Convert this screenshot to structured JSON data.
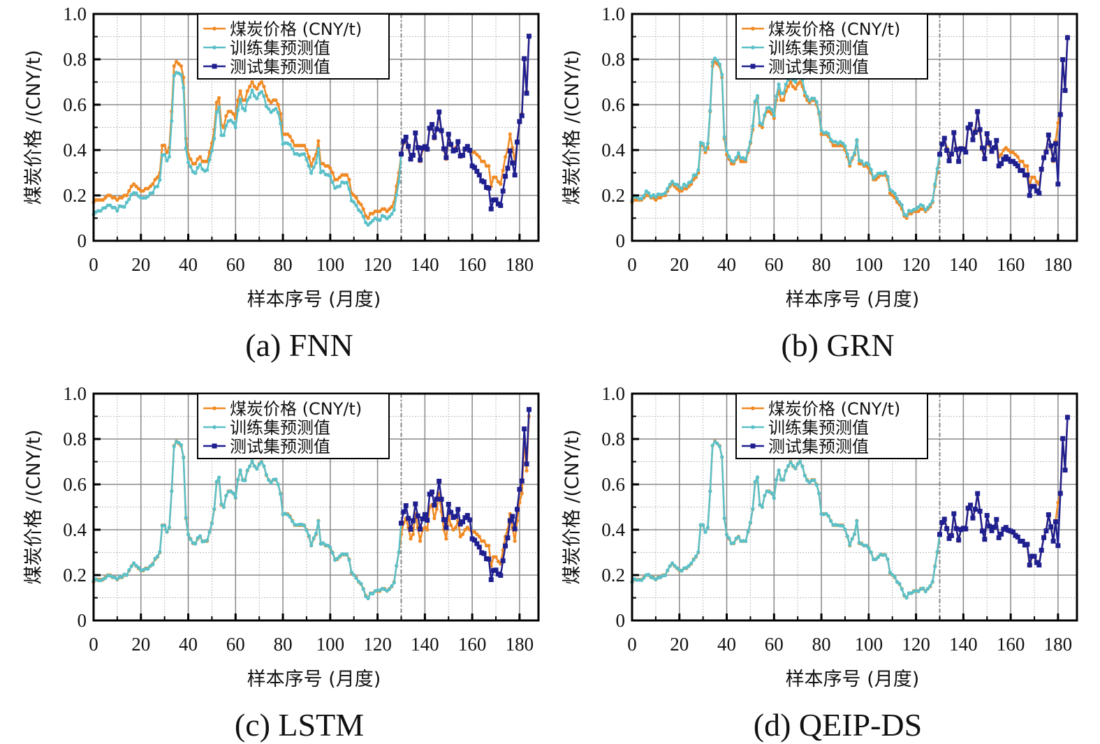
{
  "figure": {
    "x_axis_title": "样本序号 (月度)",
    "y_axis_title": "煤炭价格 /(CNY/t)",
    "legend": [
      {
        "label": "煤炭价格 (CNY/t)",
        "color": "#f08a24",
        "marker": "circle"
      },
      {
        "label": "训练集预测值",
        "color": "#5bc0c8",
        "marker": "circle"
      },
      {
        "label": "测试集预测值",
        "color": "#1f1f8f",
        "marker": "square"
      }
    ],
    "colors": {
      "actual": "#f08a24",
      "train": "#5bc0c8",
      "test": "#1f1f8f",
      "major_grid": "#888888",
      "minor_grid": "#bbbbbb",
      "split_line": "#888888"
    }
  },
  "chart_data": [
    {
      "type": "line",
      "panel": "a",
      "caption": "(a) FNN",
      "xlabel": "样本序号 (月度)",
      "ylabel": "煤炭价格 /(CNY/t)",
      "xlim": [
        0,
        188
      ],
      "ylim": [
        0,
        1.0
      ],
      "x_ticks": [
        0,
        20,
        40,
        60,
        80,
        100,
        120,
        140,
        160,
        180
      ],
      "y_ticks": [
        "0",
        "0.2",
        "0.4",
        "0.6",
        "0.8",
        "1.0"
      ],
      "y_tick_values": [
        0,
        0.2,
        0.4,
        0.6,
        0.8,
        1.0
      ],
      "grid": true,
      "legend_position": "top-center",
      "train_test_split": 130,
      "model": "FNN"
    },
    {
      "type": "line",
      "panel": "b",
      "caption": "(b) GRN",
      "xlabel": "样本序号 (月度)",
      "ylabel": "煤炭价格 /(CNY/t)",
      "xlim": [
        0,
        188
      ],
      "ylim": [
        0,
        1.0
      ],
      "x_ticks": [
        0,
        20,
        40,
        60,
        80,
        100,
        120,
        140,
        160,
        180
      ],
      "y_ticks": [
        "0",
        "0.2",
        "0.4",
        "0.6",
        "0.8",
        "1.0"
      ],
      "y_tick_values": [
        0,
        0.2,
        0.4,
        0.6,
        0.8,
        1.0
      ],
      "grid": true,
      "legend_position": "top-center",
      "train_test_split": 130,
      "model": "GRN"
    },
    {
      "type": "line",
      "panel": "c",
      "caption": "(c) LSTM",
      "xlabel": "样本序号 (月度)",
      "ylabel": "煤炭价格 /(CNY/t)",
      "xlim": [
        0,
        188
      ],
      "ylim": [
        0,
        1.0
      ],
      "x_ticks": [
        0,
        20,
        40,
        60,
        80,
        100,
        120,
        140,
        160,
        180
      ],
      "y_ticks": [
        "0",
        "0.2",
        "0.4",
        "0.6",
        "0.8",
        "1.0"
      ],
      "y_tick_values": [
        0,
        0.2,
        0.4,
        0.6,
        0.8,
        1.0
      ],
      "grid": true,
      "legend_position": "top-center",
      "train_test_split": 130,
      "model": "LSTM"
    },
    {
      "type": "line",
      "panel": "d",
      "caption": "(d) QEIP-DS",
      "xlabel": "样本序号 (月度)",
      "ylabel": "煤炭价格 /(CNY/t)",
      "xlim": [
        0,
        188
      ],
      "ylim": [
        0,
        1.0
      ],
      "x_ticks": [
        0,
        20,
        40,
        60,
        80,
        100,
        120,
        140,
        160,
        180
      ],
      "y_ticks": [
        "0",
        "0.2",
        "0.4",
        "0.6",
        "0.8",
        "1.0"
      ],
      "y_tick_values": [
        0,
        0.2,
        0.4,
        0.6,
        0.8,
        1.0
      ],
      "grid": true,
      "legend_position": "top-center",
      "train_test_split": 130,
      "model": "QEIP-DS"
    }
  ],
  "series": {
    "actual": [
      0.17,
      0.18,
      0.18,
      0.18,
      0.18,
      0.19,
      0.2,
      0.2,
      0.19,
      0.19,
      0.18,
      0.19,
      0.19,
      0.2,
      0.2,
      0.22,
      0.24,
      0.25,
      0.24,
      0.23,
      0.22,
      0.22,
      0.23,
      0.23,
      0.24,
      0.25,
      0.27,
      0.28,
      0.3,
      0.42,
      0.42,
      0.39,
      0.41,
      0.57,
      0.77,
      0.79,
      0.78,
      0.77,
      0.72,
      0.45,
      0.38,
      0.36,
      0.34,
      0.34,
      0.36,
      0.37,
      0.35,
      0.35,
      0.35,
      0.39,
      0.43,
      0.49,
      0.61,
      0.63,
      0.51,
      0.5,
      0.55,
      0.57,
      0.57,
      0.56,
      0.54,
      0.62,
      0.66,
      0.62,
      0.62,
      0.66,
      0.68,
      0.7,
      0.68,
      0.67,
      0.69,
      0.7,
      0.68,
      0.64,
      0.62,
      0.61,
      0.62,
      0.62,
      0.6,
      0.56,
      0.47,
      0.47,
      0.47,
      0.46,
      0.44,
      0.42,
      0.42,
      0.42,
      0.42,
      0.42,
      0.4,
      0.37,
      0.33,
      0.36,
      0.38,
      0.44,
      0.34,
      0.34,
      0.33,
      0.33,
      0.32,
      0.3,
      0.27,
      0.27,
      0.28,
      0.29,
      0.29,
      0.29,
      0.27,
      0.21,
      0.2,
      0.19,
      0.17,
      0.16,
      0.14,
      0.11,
      0.1,
      0.12,
      0.12,
      0.13,
      0.13,
      0.13,
      0.14,
      0.14,
      0.13,
      0.14,
      0.15,
      0.17,
      0.24,
      0.3,
      0.38,
      0.43,
      0.45,
      0.41,
      0.36,
      0.38,
      0.47,
      0.41,
      0.35,
      0.4,
      0.41,
      0.4,
      0.5,
      0.51,
      0.45,
      0.49,
      0.56,
      0.48,
      0.4,
      0.36,
      0.46,
      0.42,
      0.4,
      0.41,
      0.44,
      0.37,
      0.38,
      0.4,
      0.41,
      0.4,
      0.39,
      0.39,
      0.38,
      0.37,
      0.35,
      0.35,
      0.33,
      0.33,
      0.24,
      0.28,
      0.28,
      0.26,
      0.25,
      0.31,
      0.37,
      0.4,
      0.47,
      0.41,
      0.35,
      0.44,
      0.52,
      0.56,
      0.8,
      0.66,
      0.9
    ]
  }
}
